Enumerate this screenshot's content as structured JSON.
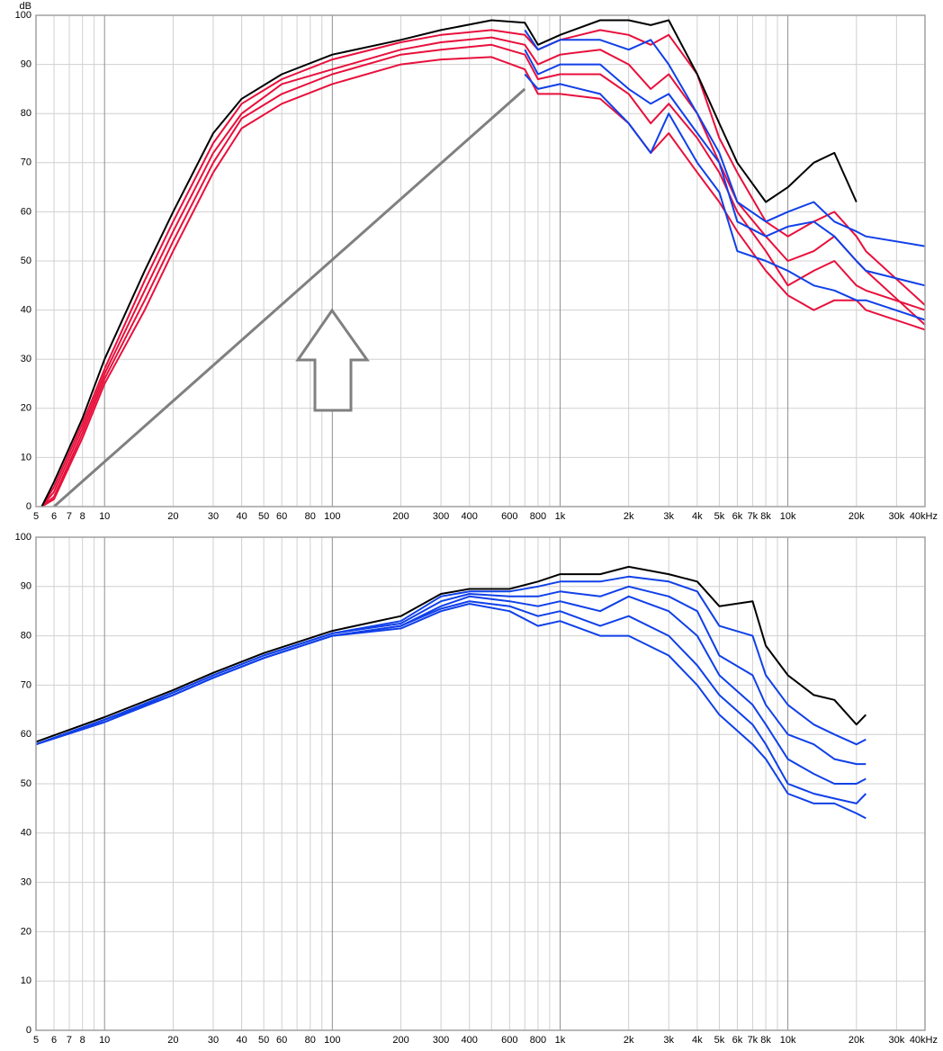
{
  "chart_data": [
    {
      "type": "line",
      "y_label": "dB",
      "log_x": true,
      "grid": true,
      "xlim": [
        5,
        40000
      ],
      "ylim": [
        0,
        100
      ],
      "yticks": [
        0,
        10,
        20,
        30,
        40,
        50,
        60,
        70,
        80,
        90,
        100
      ],
      "xticks": [
        5,
        6,
        7,
        8,
        10,
        20,
        30,
        40,
        50,
        60,
        80,
        100,
        200,
        300,
        400,
        600,
        800,
        {
          "value": 1000,
          "label": "1k"
        },
        {
          "value": 2000,
          "label": "2k"
        },
        {
          "value": 3000,
          "label": "3k"
        },
        {
          "value": 4000,
          "label": "4k"
        },
        {
          "value": 5000,
          "label": "5k"
        },
        {
          "value": 6000,
          "label": "6k"
        },
        {
          "value": 7000,
          "label": "7k"
        },
        {
          "value": 8000,
          "label": "8k"
        },
        {
          "value": 10000,
          "label": "10k"
        },
        {
          "value": 20000,
          "label": "20k"
        },
        {
          "value": 30000,
          "label": "30k"
        },
        {
          "value": 40000,
          "label": "40kHz"
        }
      ],
      "xminor_ticks": [
        9,
        70,
        90,
        500,
        700,
        900,
        9000
      ],
      "x": [
        5.3,
        6,
        8,
        10,
        15,
        20,
        30,
        40,
        60,
        100,
        200,
        300,
        500,
        700,
        800,
        1000,
        1500,
        2000,
        2500,
        3000,
        4000,
        5000,
        6000,
        8000,
        10000,
        13000,
        16000,
        20000,
        22000,
        40000
      ],
      "series": [
        {
          "color": "#e8103c",
          "values": [
            0,
            4,
            17,
            28,
            46,
            58,
            74,
            82,
            87,
            91,
            94.5,
            96,
            97,
            96,
            93,
            95,
            97,
            96,
            94,
            96,
            88,
            75,
            68,
            58,
            55,
            58,
            60,
            55,
            52,
            41
          ]
        },
        {
          "color": "#e8103c",
          "values": [
            0,
            3,
            16,
            27,
            44,
            56,
            72,
            80,
            86,
            89,
            93,
            94.5,
            95.5,
            94,
            90,
            92,
            93,
            90,
            85,
            88,
            80,
            70,
            62,
            55,
            50,
            52,
            55,
            50,
            48,
            37
          ]
        },
        {
          "color": "#e8103c",
          "values": [
            0,
            2,
            15,
            26,
            42,
            54,
            70,
            79,
            84,
            88,
            92,
            93,
            94,
            92,
            87,
            88,
            88,
            84,
            78,
            82,
            75,
            68,
            60,
            52,
            45,
            48,
            50,
            45,
            44,
            40
          ]
        },
        {
          "color": "#e8103c",
          "values": [
            0,
            1.5,
            14,
            25,
            40,
            52,
            68,
            77,
            82,
            86,
            90,
            91,
            91.5,
            89,
            84,
            84,
            83,
            78,
            72,
            76,
            68,
            62,
            56,
            48,
            43,
            40,
            42,
            42,
            40,
            36
          ]
        },
        {
          "color": "#1040e8",
          "values": [
            null,
            null,
            null,
            null,
            null,
            null,
            null,
            null,
            null,
            null,
            null,
            null,
            null,
            97,
            93,
            95,
            95,
            93,
            95,
            90,
            80,
            72,
            62,
            58,
            60,
            62,
            58,
            56,
            55,
            53
          ]
        },
        {
          "color": "#1040e8",
          "values": [
            null,
            null,
            null,
            null,
            null,
            null,
            null,
            null,
            null,
            null,
            null,
            null,
            null,
            93,
            88,
            90,
            90,
            85,
            82,
            84,
            76,
            70,
            58,
            55,
            57,
            58,
            55,
            50,
            48,
            45
          ]
        },
        {
          "color": "#1040e8",
          "values": [
            null,
            null,
            null,
            null,
            null,
            null,
            null,
            null,
            null,
            null,
            null,
            null,
            null,
            88,
            85,
            86,
            84,
            78,
            72,
            80,
            70,
            64,
            52,
            50,
            48,
            45,
            44,
            42,
            42,
            38
          ]
        },
        {
          "color": "#000000",
          "values": [
            0,
            5,
            18,
            30,
            48,
            60,
            76,
            83,
            88,
            92,
            95,
            97,
            99,
            98.5,
            94,
            96,
            99,
            99,
            98,
            99,
            88,
            78,
            70,
            62,
            65,
            70,
            72,
            62,
            null,
            null
          ]
        },
        {
          "color": "#808080",
          "x": [
            6,
            700
          ],
          "values": [
            0,
            85
          ]
        }
      ]
    },
    {
      "type": "line",
      "log_x": true,
      "grid": true,
      "xlim": [
        5,
        40000
      ],
      "ylim": [
        0,
        100
      ],
      "yticks": [
        0,
        10,
        20,
        30,
        40,
        50,
        60,
        70,
        80,
        90,
        100
      ],
      "xticks": [
        5,
        6,
        7,
        8,
        10,
        20,
        30,
        40,
        50,
        60,
        80,
        100,
        200,
        300,
        400,
        600,
        800,
        {
          "value": 1000,
          "label": "1k"
        },
        {
          "value": 2000,
          "label": "2k"
        },
        {
          "value": 3000,
          "label": "3k"
        },
        {
          "value": 4000,
          "label": "4k"
        },
        {
          "value": 5000,
          "label": "5k"
        },
        {
          "value": 6000,
          "label": "6k"
        },
        {
          "value": 7000,
          "label": "7k"
        },
        {
          "value": 8000,
          "label": "8k"
        },
        {
          "value": 10000,
          "label": "10k"
        },
        {
          "value": 20000,
          "label": "20k"
        },
        {
          "value": 30000,
          "label": "30k"
        },
        {
          "value": 40000,
          "label": "40kHz"
        }
      ],
      "xminor_ticks": [
        9,
        70,
        90,
        500,
        700,
        900,
        9000
      ],
      "x": [
        5,
        10,
        20,
        30,
        50,
        100,
        200,
        300,
        400,
        600,
        800,
        1000,
        1500,
        2000,
        3000,
        4000,
        5000,
        7000,
        8000,
        10000,
        13000,
        16000,
        20000,
        22000
      ],
      "series": [
        {
          "color": "#1040e8",
          "values": [
            58,
            63,
            68.5,
            72,
            76,
            80.5,
            83,
            88,
            89,
            89,
            90,
            91,
            91,
            92,
            91,
            89,
            82,
            80,
            72,
            66,
            62,
            60,
            58,
            59
          ]
        },
        {
          "color": "#1040e8",
          "values": [
            58,
            63,
            68.5,
            72,
            76,
            80.5,
            82.5,
            87,
            88.5,
            88,
            88,
            89,
            88,
            90,
            88,
            85,
            76,
            72,
            66,
            60,
            58,
            55,
            54,
            54
          ]
        },
        {
          "color": "#1040e8",
          "values": [
            58,
            63,
            68,
            71.5,
            75.5,
            80,
            82,
            86,
            88,
            87,
            86,
            87,
            85,
            88,
            85,
            80,
            72,
            66,
            62,
            55,
            52,
            50,
            50,
            51
          ]
        },
        {
          "color": "#1040e8",
          "values": [
            58,
            62.5,
            68,
            71.5,
            75.5,
            80,
            82,
            85.5,
            87,
            86,
            84,
            85,
            82,
            84,
            80,
            74,
            68,
            62,
            58,
            50,
            48,
            47,
            46,
            48
          ]
        },
        {
          "color": "#1040e8",
          "values": [
            58,
            62.5,
            68,
            71.5,
            75.5,
            80,
            81.5,
            85,
            86.5,
            85,
            82,
            83,
            80,
            80,
            76,
            70,
            64,
            58,
            55,
            48,
            46,
            46,
            44,
            43
          ]
        },
        {
          "color": "#000000",
          "values": [
            58.5,
            63.5,
            69,
            72.5,
            76.5,
            81,
            84,
            88.5,
            89.5,
            89.5,
            91,
            92.5,
            92.5,
            94,
            92.5,
            91,
            86,
            87,
            78,
            72,
            68,
            67,
            62,
            64
          ]
        }
      ]
    }
  ]
}
